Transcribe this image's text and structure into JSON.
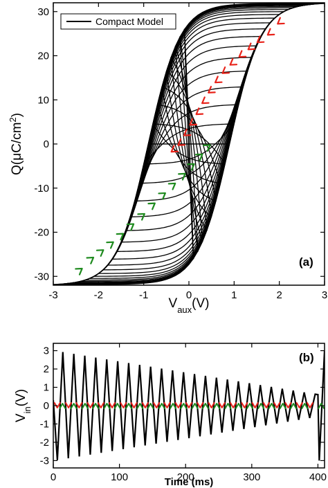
{
  "chart_data": [
    {
      "panel": "(a)",
      "type": "line",
      "legend": {
        "entries": [
          "Compact Model"
        ],
        "placement": "top-left",
        "color": "#000000"
      },
      "xlabel_base": "V",
      "xlabel_sub": "aux",
      "xlabel_unit": "(V)",
      "ylabel_text": "Q(μC/cm",
      "ylabel_sup": "2",
      "ylabel_close": ")",
      "xlim": [
        -3,
        3
      ],
      "ylim": [
        -32,
        32
      ],
      "xticks": [
        "-3",
        "-2",
        "-1",
        "0",
        "1",
        "2",
        "3"
      ],
      "yticks": [
        "-30",
        "-20",
        "-10",
        "0",
        "10",
        "20",
        "30"
      ],
      "xtick_values": [
        -3,
        -2,
        -1,
        0,
        1,
        2,
        3
      ],
      "ytick_values": [
        -30,
        -20,
        -10,
        0,
        10,
        20,
        30
      ],
      "loop": {
        "saturation_charge": 32,
        "coercive_voltage": 0.9,
        "switching_width": 0.7,
        "voltage_amplitudes": [
          3.0,
          2.9,
          2.8,
          2.7,
          2.6,
          2.5,
          2.4,
          2.3,
          2.2,
          2.1,
          2.0,
          1.9,
          1.8,
          1.7,
          1.6,
          1.5,
          1.4,
          1.3,
          1.2,
          1.1,
          1.0,
          0.9,
          0.8,
          0.7,
          0.6,
          0.5,
          0.4,
          0.3,
          0.2,
          0.1
        ]
      },
      "arrows_red": {
        "color": "#e8231a",
        "direction": "down-left",
        "points": [
          [
            2.0,
            27.5
          ],
          [
            1.78,
            25.0
          ],
          [
            1.55,
            23.3
          ],
          [
            1.35,
            21.7
          ],
          [
            1.15,
            20.0
          ],
          [
            0.95,
            18.2
          ],
          [
            0.78,
            16.3
          ],
          [
            0.62,
            14.2
          ],
          [
            0.47,
            11.9
          ],
          [
            0.33,
            9.5
          ],
          [
            0.2,
            7.0
          ],
          [
            0.06,
            4.6
          ],
          [
            -0.07,
            2.2
          ],
          [
            -0.2,
            0.0
          ],
          [
            -0.35,
            -1.5
          ]
        ]
      },
      "arrows_green": {
        "color": "#1e8a1e",
        "direction": "up-right",
        "points": [
          [
            -2.4,
            -28.5
          ],
          [
            -2.15,
            -26.0
          ],
          [
            -1.93,
            -24.3
          ],
          [
            -1.71,
            -22.5
          ],
          [
            -1.49,
            -20.6
          ],
          [
            -1.26,
            -18.4
          ],
          [
            -1.02,
            -16.1
          ],
          [
            -0.79,
            -13.7
          ],
          [
            -0.56,
            -11.4
          ],
          [
            -0.34,
            -9.2
          ],
          [
            -0.12,
            -7.0
          ],
          [
            0.08,
            -4.8
          ],
          [
            0.26,
            -2.6
          ],
          [
            0.43,
            -0.5
          ]
        ]
      }
    },
    {
      "panel": "(b)",
      "type": "line",
      "xlabel": "Time (ms)",
      "ylabel_base": "V",
      "ylabel_sub": "in",
      "ylabel_unit": "(V)",
      "xlim": [
        0,
        410
      ],
      "ylim": [
        -3.4,
        3.4
      ],
      "xticks": [
        "0",
        "100",
        "200",
        "300",
        "400"
      ],
      "yticks": [
        "-3",
        "-2",
        "-1",
        "0",
        "1",
        "2",
        "3"
      ],
      "xtick_values": [
        0,
        100,
        200,
        300,
        400
      ],
      "ytick_values": [
        -3,
        -2,
        -1,
        0,
        1,
        2,
        3
      ],
      "waveform": {
        "cycles": 24,
        "t_start": 2,
        "t_end": 400,
        "amplitude_start": 3.0,
        "amplitude_end": 0.6,
        "final_drop": -3.0,
        "final_rise": 3.0
      },
      "arrows_red": {
        "color": "#e8231a",
        "direction": "down",
        "times": [
          6,
          23,
          39,
          56,
          72,
          89,
          106,
          122,
          139,
          156,
          172,
          189,
          205,
          222,
          239,
          255,
          272,
          289,
          305,
          322,
          338,
          355,
          372,
          388
        ]
      },
      "arrows_green": {
        "color": "#1e8a1e",
        "direction": "up",
        "times": [
          14,
          31,
          48,
          64,
          81,
          97,
          114,
          131,
          147,
          164,
          181,
          197,
          214,
          230,
          247,
          264,
          280,
          297,
          314,
          330,
          347,
          363,
          380,
          405
        ]
      }
    }
  ]
}
